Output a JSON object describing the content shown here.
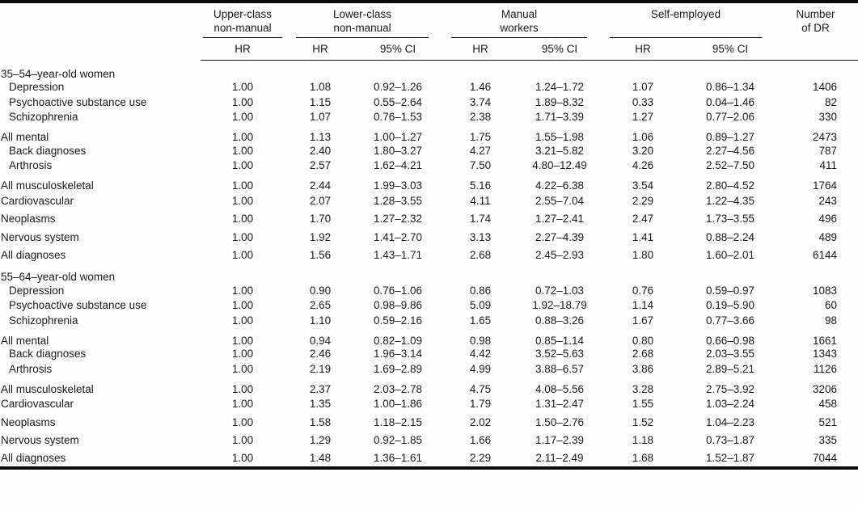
{
  "page": {
    "background": "#fefefe",
    "text_color": "#1b1b1b",
    "rule_color": "#0b0b0b"
  },
  "table": {
    "column_groups": [
      {
        "label": "Upper-class\nnon-manual",
        "subcolumns": [
          "HR"
        ]
      },
      {
        "label": "Lower-class\nnon-manual",
        "subcolumns": [
          "HR",
          "95% CI"
        ]
      },
      {
        "label": "Manual\nworkers",
        "subcolumns": [
          "HR",
          "95% CI"
        ]
      },
      {
        "label": "Self-employed",
        "subcolumns": [
          "HR",
          "95% CI"
        ]
      },
      {
        "label": "Number\nof DR",
        "subcolumns": []
      }
    ],
    "rows": [
      {
        "kind": "section",
        "label": "35–54–year-old women"
      },
      {
        "kind": "data",
        "label": "Depression",
        "indent": true,
        "values": [
          "1.00",
          "1.08",
          "0.92–1.26",
          "1.46",
          "1.24–1.72",
          "1.07",
          "0.86–1.34",
          "1406"
        ]
      },
      {
        "kind": "data",
        "label": "Psychoactive substance use",
        "indent": true,
        "values": [
          "1.00",
          "1.15",
          "0.55–2.64",
          "3.74",
          "1.89–8.32",
          "0.33",
          "0.04–1.46",
          "82"
        ]
      },
      {
        "kind": "data",
        "label": "Schizophrenia",
        "indent": true,
        "values": [
          "1.00",
          "1.07",
          "0.76–1.53",
          "2.38",
          "1.71–3.39",
          "1.27",
          "0.77–2.06",
          "330"
        ]
      },
      {
        "kind": "data",
        "label": "All mental",
        "gap": true,
        "values": [
          "1.00",
          "1.13",
          "1.00–1.27",
          "1.75",
          "1.55–1.98",
          "1.06",
          "0.89–1.27",
          "2473"
        ]
      },
      {
        "kind": "data",
        "label": "Back diagnoses",
        "indent": true,
        "values": [
          "1.00",
          "2.40",
          "1.80–3.27",
          "4.27",
          "3.21–5.82",
          "3.20",
          "2.27–4.56",
          "787"
        ]
      },
      {
        "kind": "data",
        "label": "Arthrosis",
        "indent": true,
        "values": [
          "1.00",
          "2.57",
          "1.62–4.21",
          "7.50",
          "4.80–12.49",
          "4.26",
          "2.52–7.50",
          "411"
        ]
      },
      {
        "kind": "data",
        "label": "All musculoskeletal",
        "gap": true,
        "tall": true,
        "values": [
          "1.00",
          "2.44",
          "1.99–3.03",
          "5.16",
          "4.22–6.38",
          "3.54",
          "2.80–4.52",
          "1764"
        ]
      },
      {
        "kind": "data",
        "label": "Cardiovascular",
        "tall": true,
        "values": [
          "1.00",
          "2.07",
          "1.28–3.55",
          "4.11",
          "2.55–7.04",
          "2.29",
          "1.22–4.35",
          "243"
        ]
      },
      {
        "kind": "data",
        "label": "Neoplasms",
        "tall": true,
        "values": [
          "1.00",
          "1.70",
          "1.27–2.32",
          "1.74",
          "1.27–2.41",
          "2.47",
          "1.73–3.55",
          "496"
        ]
      },
      {
        "kind": "data",
        "label": "Nervous system",
        "tall": true,
        "values": [
          "1.00",
          "1.92",
          "1.41–2.70",
          "3.13",
          "2.27–4.39",
          "1.41",
          "0.88–2.24",
          "489"
        ]
      },
      {
        "kind": "data",
        "label": "All diagnoses",
        "tall": true,
        "values": [
          "1.00",
          "1.56",
          "1.43–1.71",
          "2.68",
          "2.45–2.93",
          "1.80",
          "1.60–2.01",
          "6144"
        ]
      },
      {
        "kind": "section",
        "label": "55–64–year-old women",
        "gap": true
      },
      {
        "kind": "data",
        "label": "Depression",
        "indent": true,
        "values": [
          "1.00",
          "0.90",
          "0.76–1.06",
          "0.86",
          "0.72–1.03",
          "0.76",
          "0.59–0.97",
          "1083"
        ]
      },
      {
        "kind": "data",
        "label": "Psychoactive substance use",
        "indent": true,
        "values": [
          "1.00",
          "2.65",
          "0.98–9.86",
          "5.09",
          "1.92–18.79",
          "1.14",
          "0.19–5.90",
          "60"
        ]
      },
      {
        "kind": "data",
        "label": "Schizophrenia",
        "indent": true,
        "values": [
          "1.00",
          "1.10",
          "0.59–2.16",
          "1.65",
          "0.88–3.26",
          "1.67",
          "0.77–3.66",
          "98"
        ]
      },
      {
        "kind": "data",
        "label": "All mental",
        "gap": true,
        "values": [
          "1.00",
          "0.94",
          "0.82–1.09",
          "0.98",
          "0.85–1.14",
          "0.80",
          "0.66–0.98",
          "1661"
        ]
      },
      {
        "kind": "data",
        "label": "Back diagnoses",
        "indent": true,
        "values": [
          "1.00",
          "2.46",
          "1.96–3.14",
          "4.42",
          "3.52–5.63",
          "2.68",
          "2.03–3.55",
          "1343"
        ]
      },
      {
        "kind": "data",
        "label": "Arthrosis",
        "indent": true,
        "values": [
          "1.00",
          "2.19",
          "1.69–2.89",
          "4.99",
          "3.88–6.57",
          "3.86",
          "2.89–5.21",
          "1126"
        ]
      },
      {
        "kind": "data",
        "label": "All musculoskeletal",
        "gap": true,
        "tall": true,
        "values": [
          "1.00",
          "2.37",
          "2.03–2.78",
          "4.75",
          "4.08–5.56",
          "3.28",
          "2.75–3.92",
          "3206"
        ]
      },
      {
        "kind": "data",
        "label": "Cardiovascular",
        "tall": true,
        "values": [
          "1.00",
          "1.35",
          "1.00–1.86",
          "1.79",
          "1.31–2.47",
          "1.55",
          "1.03–2.24",
          "458"
        ]
      },
      {
        "kind": "data",
        "label": "Neoplasms",
        "tall": true,
        "values": [
          "1.00",
          "1.58",
          "1.18–2.15",
          "2.02",
          "1.50–2.76",
          "1.52",
          "1.04–2.23",
          "521"
        ]
      },
      {
        "kind": "data",
        "label": "Nervous system",
        "tall": true,
        "values": [
          "1.00",
          "1.29",
          "0.92–1.85",
          "1.66",
          "1.17–2.39",
          "1.18",
          "0.73–1.87",
          "335"
        ]
      },
      {
        "kind": "data",
        "label": "All diagnoses",
        "tall": true,
        "values": [
          "1.00",
          "1.48",
          "1.36–1.61",
          "2.29",
          "2.11–2.49",
          "1.68",
          "1.52–1.87",
          "7044"
        ]
      }
    ]
  }
}
